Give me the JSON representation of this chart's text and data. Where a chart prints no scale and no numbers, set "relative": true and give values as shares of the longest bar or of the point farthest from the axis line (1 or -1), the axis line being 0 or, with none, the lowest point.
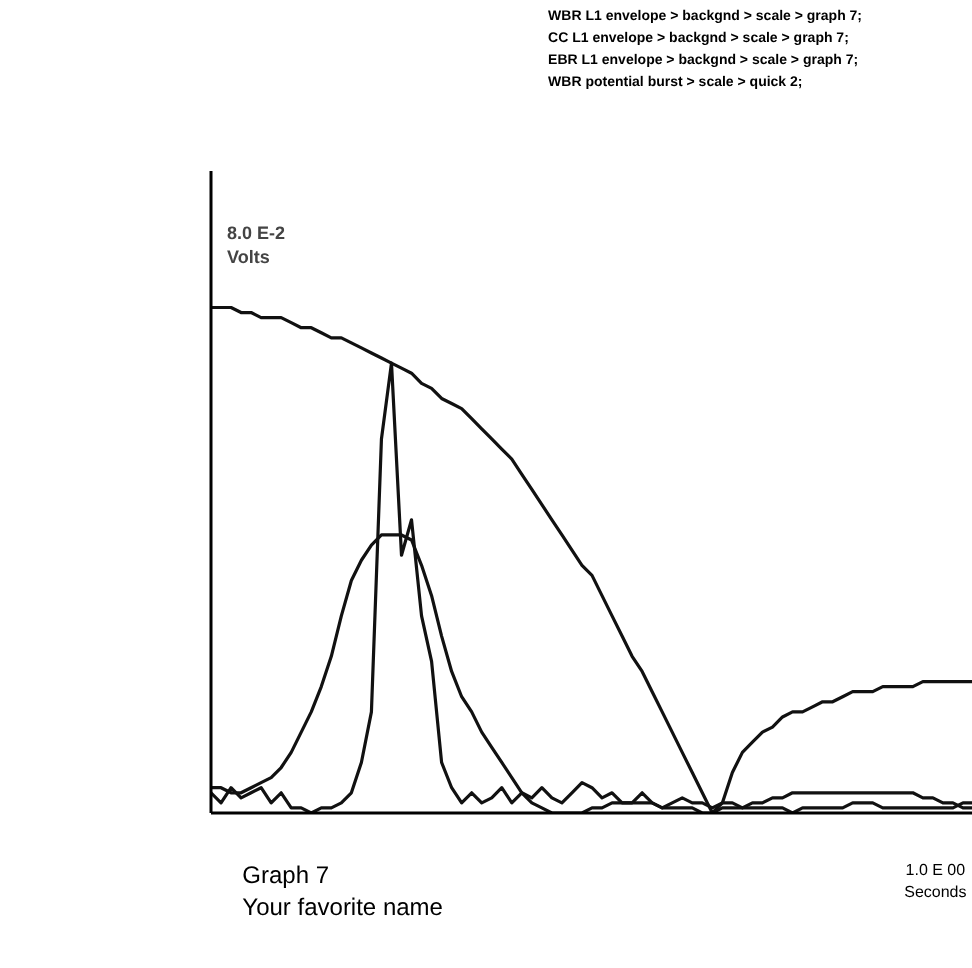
{
  "chart_data": {
    "type": "line",
    "relative": true,
    "title": "Graph 7",
    "subtitle": "Your favorite name",
    "ylabel": "8.0 E-2\nVolts",
    "xlabel": "1.0 E 00\nSeconds",
    "annotations": [
      "WBR L1 envelope > backgnd > scale > graph 7;",
      "CC L1 envelope > backgnd > scale > graph 7;",
      "EBR L1 envelope > backgnd > scale > graph 7;",
      "WBR potential burst > scale > quick 2;"
    ],
    "categories": [
      null,
      null,
      null,
      null,
      null,
      null,
      null,
      null,
      null,
      null,
      null,
      null,
      null,
      null,
      null,
      null,
      null,
      null,
      null,
      null,
      null,
      null,
      null,
      null,
      null,
      null,
      null,
      null,
      null,
      null,
      null,
      null,
      null,
      null,
      null,
      null,
      null,
      null,
      null,
      null,
      null,
      null,
      null,
      null,
      null,
      null,
      null,
      null,
      null,
      null,
      null,
      null,
      null,
      null,
      null,
      null,
      null,
      null,
      null,
      null,
      null,
      null,
      null,
      null,
      null,
      null,
      null,
      null,
      null,
      null,
      null,
      null,
      null,
      null,
      null,
      null,
      null
    ],
    "series": [
      {
        "color": "#111111",
        "values": [
          1.0,
          1.0,
          1.0,
          0.99,
          0.99,
          0.98,
          0.98,
          0.98,
          0.97,
          0.96,
          0.96,
          0.95,
          0.94,
          0.94,
          0.93,
          0.92,
          0.91,
          0.9,
          0.89,
          0.88,
          0.87,
          0.85,
          0.84,
          0.82,
          0.81,
          0.8,
          0.78,
          0.76,
          0.74,
          0.72,
          0.7,
          0.67,
          0.64,
          0.61,
          0.58,
          0.55,
          0.52,
          0.49,
          0.47,
          0.43,
          0.39,
          0.35,
          0.31,
          0.28,
          0.24,
          0.2,
          0.16,
          0.12,
          0.08,
          0.04,
          0.0,
          0.02,
          0.08,
          0.12,
          0.14,
          0.16,
          0.17,
          0.19,
          0.2,
          0.2,
          0.21,
          0.22,
          0.22,
          0.23,
          0.24,
          0.24,
          0.24,
          0.25,
          0.25,
          0.25,
          0.25,
          0.26,
          0.26,
          0.26,
          0.26,
          0.26,
          0.26
        ]
      },
      {
        "color": "#111111",
        "values": [
          0.05,
          0.05,
          0.04,
          0.04,
          0.05,
          0.06,
          0.07,
          0.09,
          0.12,
          0.16,
          0.2,
          0.25,
          0.31,
          0.39,
          0.46,
          0.5,
          0.53,
          0.55,
          0.55,
          0.55,
          0.54,
          0.49,
          0.43,
          0.35,
          0.28,
          0.23,
          0.2,
          0.16,
          0.13,
          0.1,
          0.07,
          0.04,
          0.02,
          0.01,
          0.0,
          0.0,
          0.0,
          0.0,
          0.01,
          0.01,
          0.02,
          0.02,
          0.02,
          0.02,
          0.02,
          0.01,
          0.01,
          0.01,
          0.01,
          0.0,
          0.0,
          0.01,
          0.01,
          0.01,
          0.02,
          0.02,
          0.03,
          0.03,
          0.04,
          0.04,
          0.04,
          0.04,
          0.04,
          0.04,
          0.04,
          0.04,
          0.04,
          0.04,
          0.04,
          0.04,
          0.04,
          0.03,
          0.03,
          0.02,
          0.02,
          0.01,
          0.01
        ]
      },
      {
        "color": "#111111",
        "values": [
          0.04,
          0.02,
          0.05,
          0.03,
          0.04,
          0.05,
          0.02,
          0.04,
          0.01,
          0.01,
          0.0,
          0.01,
          0.01,
          0.02,
          0.04,
          0.1,
          0.2,
          0.74,
          0.89,
          0.51,
          0.58,
          0.39,
          0.3,
          0.1,
          0.05,
          0.02,
          0.04,
          0.02,
          0.03,
          0.05,
          0.02,
          0.04,
          0.03,
          0.05,
          0.03,
          0.02,
          0.04,
          0.06,
          0.05,
          0.03,
          0.04,
          0.02,
          0.02,
          0.04,
          0.02,
          0.01,
          0.02,
          0.03,
          0.02,
          0.02,
          0.01,
          0.02,
          0.02,
          0.01,
          0.01,
          0.01,
          0.01,
          0.01,
          0.0,
          0.01,
          0.01,
          0.01,
          0.01,
          0.01,
          0.02,
          0.02,
          0.02,
          0.01,
          0.01,
          0.01,
          0.01,
          0.01,
          0.01,
          0.01,
          0.01,
          0.02,
          0.02
        ]
      }
    ]
  }
}
